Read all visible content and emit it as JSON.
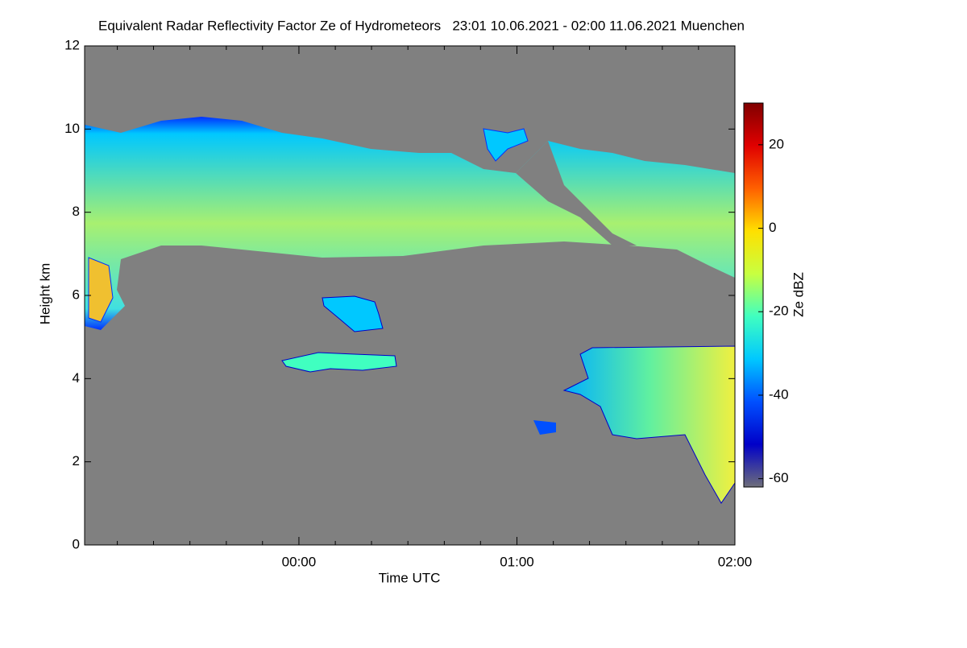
{
  "chart_data": {
    "type": "heatmap",
    "title": "Equivalent Radar Reflectivity Factor Ze of Hydrometeors   23:01 10.06.2021 - 02:00 11.06.2021 Muenchen",
    "x_label": "Time UTC",
    "y_label": "Height km",
    "colorbar_label": "Ze dBZ",
    "xlim": [
      -0.983,
      2.0
    ],
    "xticks": [
      {
        "value": 0,
        "label": "00:00"
      },
      {
        "value": 1,
        "label": "01:00"
      },
      {
        "value": 2,
        "label": "02:00"
      }
    ],
    "xticks_minor": [
      -0.833,
      -0.667,
      -0.5,
      -0.333,
      -0.167,
      0.167,
      0.333,
      0.5,
      0.667,
      0.833,
      1.167,
      1.333,
      1.5,
      1.667,
      1.833
    ],
    "ylim": [
      0,
      12
    ],
    "yticks": [
      0,
      2,
      4,
      6,
      8,
      10,
      12
    ],
    "zlim": [
      -62,
      30
    ],
    "zticks": [
      -60,
      -40,
      -20,
      0,
      20
    ],
    "colormap": [
      "#6e6e7a",
      "#0000c8",
      "#0050ff",
      "#00c8ff",
      "#40ffc0",
      "#c8ff40",
      "#ffe000",
      "#ff6000",
      "#e00000",
      "#800000"
    ],
    "background": "#808080"
  }
}
